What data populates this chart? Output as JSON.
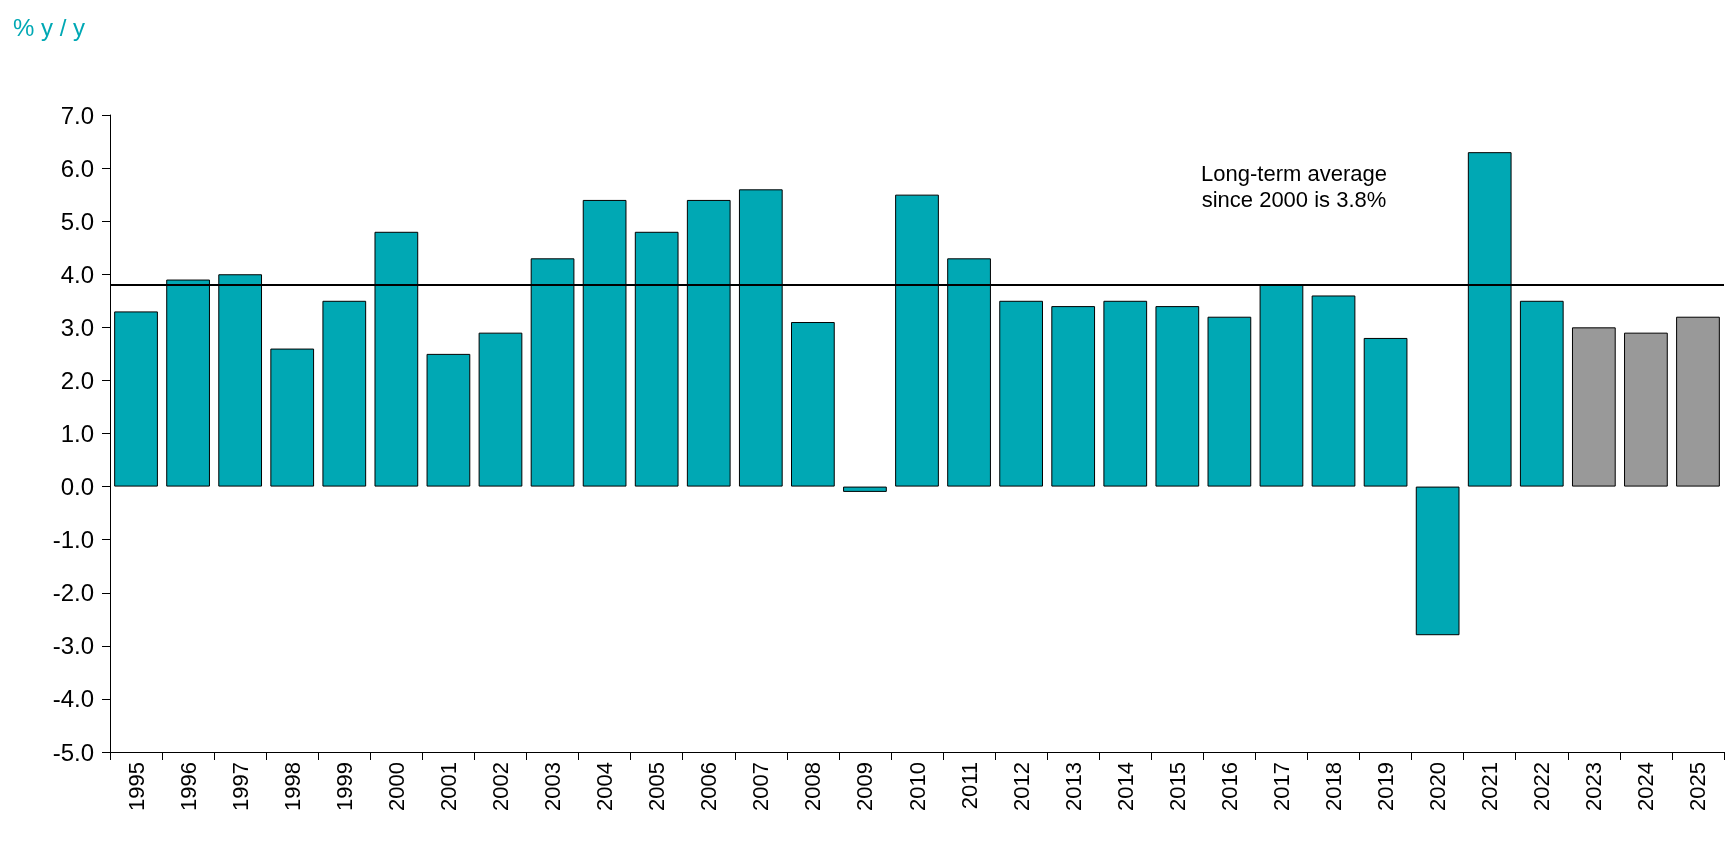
{
  "chart_data": {
    "type": "bar",
    "ylabel": "% y / y",
    "categories": [
      "1995",
      "1996",
      "1997",
      "1998",
      "1999",
      "2000",
      "2001",
      "2002",
      "2003",
      "2004",
      "2005",
      "2006",
      "2007",
      "2008",
      "2009",
      "2010",
      "2011",
      "2012",
      "2013",
      "2014",
      "2015",
      "2016",
      "2017",
      "2018",
      "2019",
      "2020",
      "2021",
      "2022",
      "2023",
      "2024",
      "2025"
    ],
    "values": [
      3.3,
      3.9,
      4.0,
      2.6,
      3.5,
      4.8,
      2.5,
      2.9,
      4.3,
      5.4,
      4.8,
      5.4,
      5.6,
      3.1,
      -0.1,
      5.5,
      4.3,
      3.5,
      3.4,
      3.5,
      3.4,
      3.2,
      3.8,
      3.6,
      2.8,
      -2.8,
      6.3,
      3.5,
      3.0,
      2.9,
      3.2
    ],
    "colors": [
      "#00a8b4",
      "#00a8b4",
      "#00a8b4",
      "#00a8b4",
      "#00a8b4",
      "#00a8b4",
      "#00a8b4",
      "#00a8b4",
      "#00a8b4",
      "#00a8b4",
      "#00a8b4",
      "#00a8b4",
      "#00a8b4",
      "#00a8b4",
      "#00a8b4",
      "#00a8b4",
      "#00a8b4",
      "#00a8b4",
      "#00a8b4",
      "#00a8b4",
      "#00a8b4",
      "#00a8b4",
      "#00a8b4",
      "#00a8b4",
      "#00a8b4",
      "#00a8b4",
      "#00a8b4",
      "#00a8b4",
      "#999999",
      "#999999",
      "#999999"
    ],
    "ylim": [
      -5,
      7
    ],
    "yticks": [
      {
        "value": -5,
        "label": "-5.0"
      },
      {
        "value": -4,
        "label": "-4.0"
      },
      {
        "value": -3,
        "label": "-3.0"
      },
      {
        "value": -2,
        "label": "-2.0"
      },
      {
        "value": -1,
        "label": "-1.0"
      },
      {
        "value": 0,
        "label": "0.0"
      },
      {
        "value": 1,
        "label": "1.0"
      },
      {
        "value": 2,
        "label": "2.0"
      },
      {
        "value": 3,
        "label": "3.0"
      },
      {
        "value": 4,
        "label": "4.0"
      },
      {
        "value": 5,
        "label": "5.0"
      },
      {
        "value": 6,
        "label": "6.0"
      },
      {
        "value": 7,
        "label": "7.0"
      }
    ],
    "ref_lines": [
      {
        "axis": "y",
        "value": 3.8,
        "label": "Long-term average\nsince 2000 is 3.8%",
        "color": "#000000"
      }
    ],
    "grid": false
  }
}
